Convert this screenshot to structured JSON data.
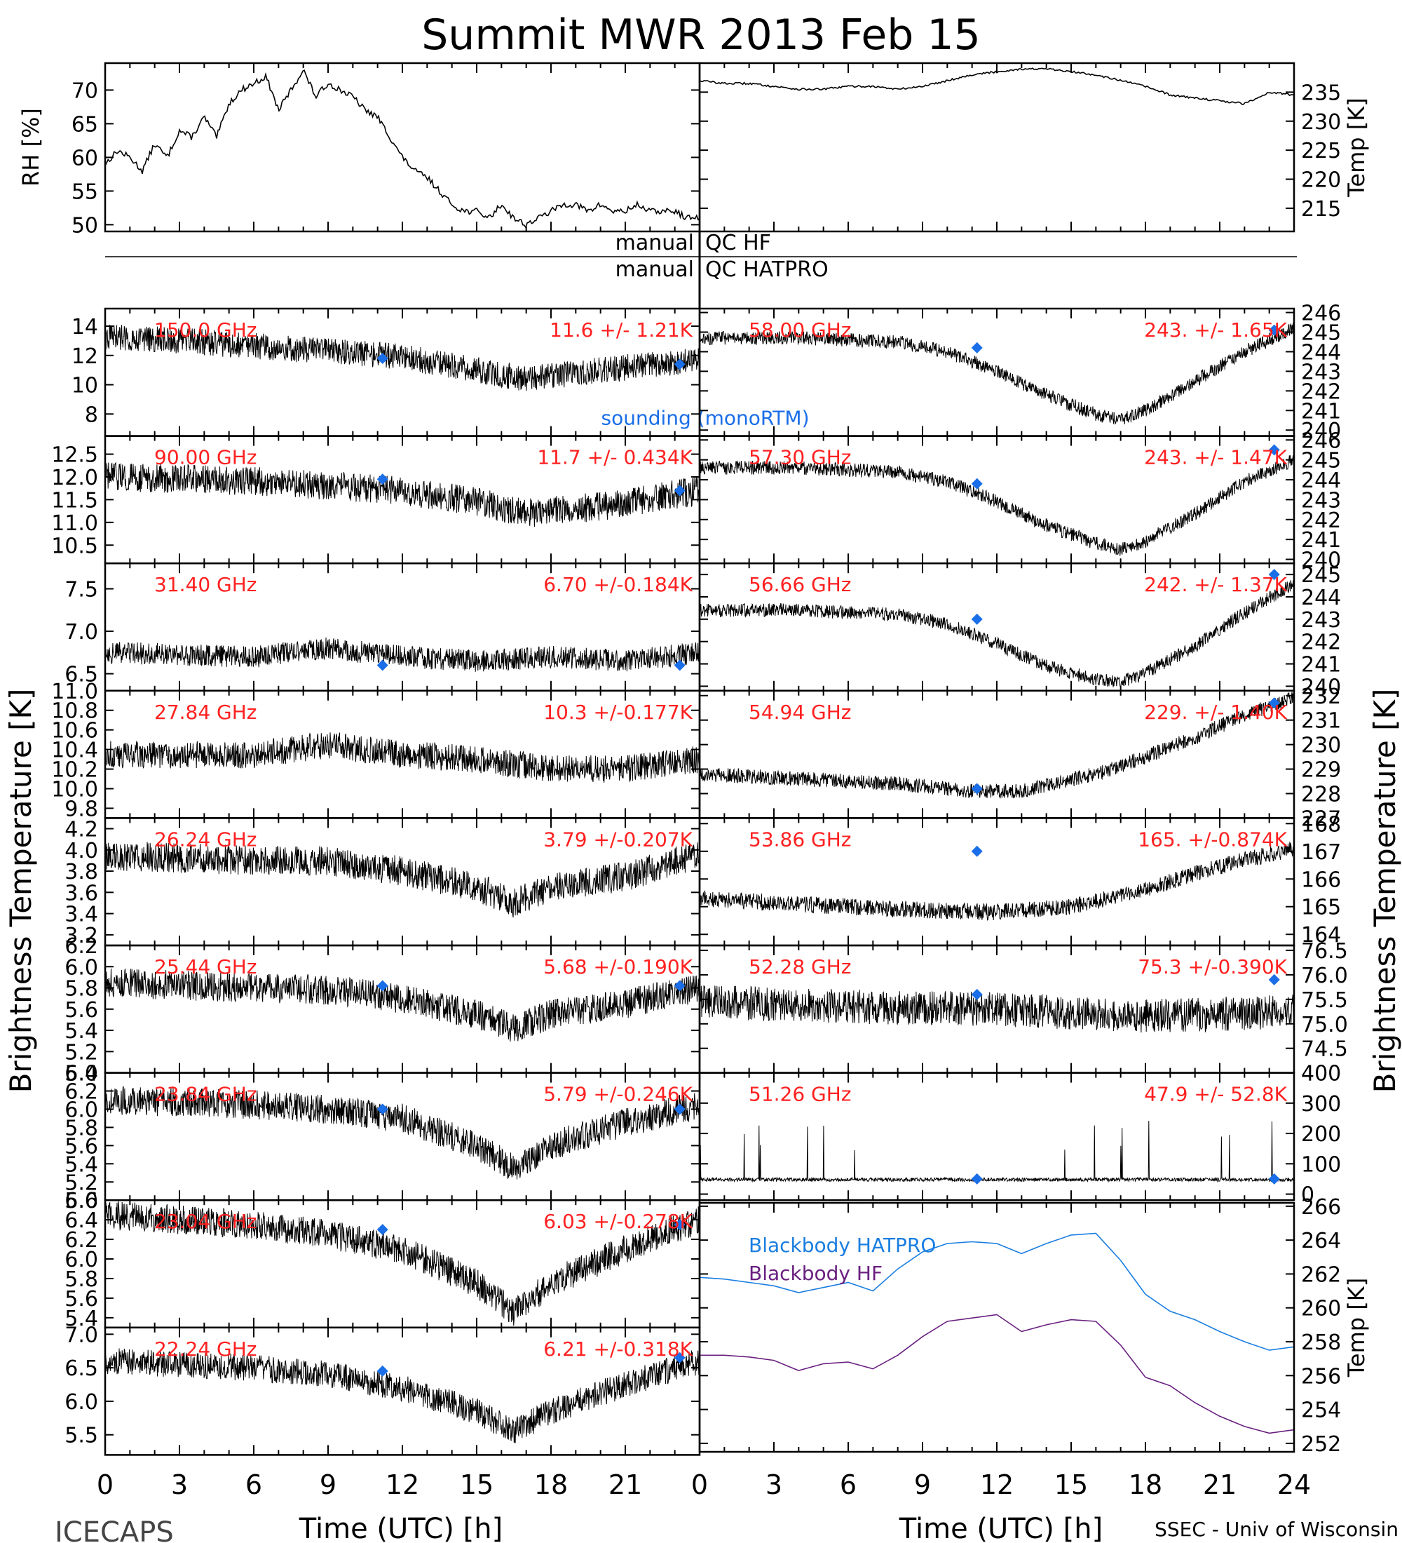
{
  "page": {
    "title": "Summit MWR 2013 Feb 15",
    "footer_left": "ICECAPS",
    "footer_right": "SSEC - Univ of Wisconsin",
    "left_ylabel": "Brightness Temperature [K]",
    "right_ylabel": "Brightness Temperature [K]",
    "xlabel": "Time (UTC) [h]",
    "qc_label_prefix": "manual",
    "qc_label_hf": "QC HF",
    "qc_label_hatpro": "QC HATPRO",
    "xticks": [
      "0",
      "3",
      "6",
      "9",
      "12",
      "15",
      "18",
      "21",
      "24"
    ],
    "colors": {
      "trace": "#000000",
      "label": "#ff2020",
      "sounding": "#1a6ee8",
      "bb_hatpro": "#1a7ee0",
      "bb_hf": "#6a2080"
    }
  },
  "chart_data": [
    {
      "id": "rh",
      "type": "line",
      "side": "left",
      "ylabel": "RH [%]",
      "ylim": [
        49,
        74
      ],
      "yticks": [
        "50",
        "55",
        "60",
        "65",
        "70"
      ],
      "series": [
        {
          "name": "RH",
          "x": [
            0,
            0.5,
            1,
            1.5,
            2,
            2.5,
            3,
            3.5,
            4,
            4.5,
            5,
            5.5,
            6,
            6.5,
            7,
            7.5,
            8,
            8.5,
            9,
            9.5,
            10,
            10.5,
            11,
            11.5,
            12,
            12.5,
            13,
            13.5,
            14,
            14.5,
            15,
            15.5,
            16,
            16.5,
            17,
            17.5,
            18,
            18.5,
            19,
            19.5,
            20,
            20.5,
            21,
            21.5,
            22,
            22.5,
            23,
            23.5,
            24
          ],
          "values": [
            59,
            61,
            60,
            58,
            62,
            60,
            64,
            63,
            66,
            63,
            68,
            70,
            71,
            72,
            67,
            70,
            73,
            69,
            71,
            70,
            69,
            67,
            66,
            63,
            60,
            58,
            57,
            55,
            53,
            52,
            52,
            51,
            53,
            51,
            50,
            51,
            52,
            53,
            53,
            52,
            53,
            52,
            52,
            53,
            52,
            52,
            52,
            51,
            51
          ]
        }
      ]
    },
    {
      "id": "temp",
      "type": "line",
      "side": "right",
      "ylabel": "Temp [K]",
      "ylim": [
        211,
        240
      ],
      "yticks": [
        "215",
        "220",
        "225",
        "230",
        "235"
      ],
      "series": [
        {
          "name": "Temp",
          "x": [
            0,
            1,
            2,
            3,
            4,
            5,
            6,
            7,
            8,
            9,
            10,
            11,
            12,
            13,
            14,
            15,
            16,
            17,
            18,
            19,
            20,
            21,
            22,
            23,
            24
          ],
          "values": [
            237,
            236.5,
            236.5,
            236,
            235.5,
            235.5,
            236,
            236,
            235.5,
            236,
            237,
            238,
            238.5,
            239,
            239,
            238.5,
            238,
            237,
            236,
            234.5,
            234,
            233.5,
            233,
            235,
            234.5
          ]
        }
      ]
    },
    {
      "id": "hf150",
      "type": "line",
      "side": "left",
      "freq": "150.0 GHz",
      "stats": "11.6 +/- 1.21K",
      "ylim": [
        6.5,
        15.2
      ],
      "yticks": [
        "8",
        "10",
        "12",
        "14"
      ],
      "noise": 0.9,
      "trend": {
        "x": [
          0,
          4,
          8,
          12,
          15,
          17,
          20,
          24
        ],
        "values": [
          13.3,
          12.9,
          12.4,
          11.9,
          11.0,
          10.4,
          11.0,
          11.7
        ]
      },
      "sounding": {
        "x": [
          11.2,
          23.2
        ],
        "values": [
          11.8,
          11.4
        ]
      },
      "note": "sounding (monoRTM)"
    },
    {
      "id": "hf90",
      "type": "line",
      "side": "left",
      "freq": "90.00 GHz",
      "stats": "11.7 +/- 0.434K",
      "ylim": [
        10.1,
        12.9
      ],
      "yticks": [
        "10.5",
        "11.0",
        "11.5",
        "12.0",
        "12.5"
      ],
      "noise": 0.32,
      "trend": {
        "x": [
          0,
          4,
          8,
          12,
          15,
          17,
          20,
          24
        ],
        "values": [
          12.0,
          11.95,
          11.85,
          11.7,
          11.45,
          11.2,
          11.35,
          11.7
        ]
      },
      "sounding": {
        "x": [
          11.2,
          23.2
        ],
        "values": [
          11.95,
          11.7
        ]
      }
    },
    {
      "id": "h3140",
      "type": "line",
      "side": "left",
      "freq": "31.40 GHz",
      "stats": "6.70 +/-0.184K",
      "ylim": [
        6.3,
        7.8
      ],
      "yticks": [
        "6.5",
        "7.0",
        "7.5"
      ],
      "noise": 0.13,
      "trend": {
        "x": [
          0,
          6,
          9,
          12,
          15,
          18,
          21,
          24
        ],
        "values": [
          6.75,
          6.7,
          6.8,
          6.7,
          6.65,
          6.7,
          6.65,
          6.75
        ]
      },
      "sounding": {
        "x": [
          11.2,
          23.2
        ],
        "values": [
          6.6,
          6.6
        ]
      }
    },
    {
      "id": "h2784",
      "type": "line",
      "side": "left",
      "freq": "27.84 GHz",
      "stats": "10.3 +/-0.177K",
      "ylim": [
        9.7,
        11.0
      ],
      "yticks": [
        "9.8",
        "10.0",
        "10.2",
        "10.4",
        "10.6",
        "10.8",
        "11.0"
      ],
      "noise": 0.14,
      "trend": {
        "x": [
          0,
          6,
          9,
          12,
          15,
          18,
          21,
          24
        ],
        "values": [
          10.35,
          10.35,
          10.45,
          10.35,
          10.3,
          10.2,
          10.2,
          10.3
        ]
      }
    },
    {
      "id": "h2624",
      "type": "line",
      "side": "left",
      "freq": "26.24 GHz",
      "stats": "3.79 +/-0.207K",
      "ylim": [
        3.1,
        4.3
      ],
      "yticks": [
        "3.2",
        "3.4",
        "3.6",
        "3.8",
        "4.0",
        "4.2"
      ],
      "noise": 0.14,
      "trend": {
        "x": [
          0,
          6,
          9,
          12,
          15,
          16.5,
          18,
          21,
          24
        ],
        "values": [
          3.95,
          3.9,
          3.9,
          3.8,
          3.65,
          3.5,
          3.65,
          3.75,
          3.95
        ]
      }
    },
    {
      "id": "h2544",
      "type": "line",
      "side": "left",
      "freq": "25.44 GHz",
      "stats": "5.68 +/-0.190K",
      "ylim": [
        5.0,
        6.2
      ],
      "yticks": [
        "5.0",
        "5.2",
        "5.4",
        "5.6",
        "5.8",
        "6.0",
        "6.2"
      ],
      "noise": 0.14,
      "trend": {
        "x": [
          0,
          6,
          9,
          12,
          15,
          16.5,
          18,
          21,
          24
        ],
        "values": [
          5.85,
          5.8,
          5.78,
          5.7,
          5.55,
          5.42,
          5.55,
          5.65,
          5.8
        ]
      },
      "sounding": {
        "x": [
          11.2,
          23.2
        ],
        "values": [
          5.82,
          5.82
        ]
      }
    },
    {
      "id": "h2384",
      "type": "line",
      "side": "left",
      "freq": "23.84 GHz",
      "stats": "5.79 +/-0.246K",
      "ylim": [
        5.0,
        6.4
      ],
      "yticks": [
        "5.0",
        "5.2",
        "5.4",
        "5.6",
        "5.8",
        "6.0",
        "6.2",
        "6.4"
      ],
      "noise": 0.16,
      "trend": {
        "x": [
          0,
          6,
          9,
          12,
          15,
          16.5,
          18,
          21,
          24
        ],
        "values": [
          6.1,
          6.05,
          6.0,
          5.9,
          5.6,
          5.35,
          5.6,
          5.85,
          6.05
        ]
      },
      "sounding": {
        "x": [
          11.2,
          23.2
        ],
        "values": [
          6.0,
          6.0
        ]
      }
    },
    {
      "id": "h2304",
      "type": "line",
      "side": "left",
      "freq": "23.04 GHz",
      "stats": "6.03 +/-0.278K",
      "ylim": [
        5.3,
        6.6
      ],
      "yticks": [
        "5.4",
        "5.6",
        "5.8",
        "6.0",
        "6.2",
        "6.4",
        "6.6"
      ],
      "noise": 0.15,
      "trend": {
        "x": [
          0,
          6,
          9,
          12,
          15,
          16.5,
          18,
          21,
          24
        ],
        "values": [
          6.45,
          6.35,
          6.25,
          6.1,
          5.75,
          5.45,
          5.75,
          6.1,
          6.4
        ]
      },
      "sounding": {
        "x": [
          11.2,
          23.2
        ],
        "values": [
          6.3,
          6.35
        ]
      }
    },
    {
      "id": "h2224",
      "type": "line",
      "side": "left",
      "freq": "22.24 GHz",
      "stats": "6.21 +/-0.318K",
      "ylim": [
        5.2,
        7.1
      ],
      "yticks": [
        "5.5",
        "6.0",
        "6.5",
        "7.0"
      ],
      "noise": 0.2,
      "trend": {
        "x": [
          0,
          6,
          9,
          12,
          15,
          16.5,
          18,
          21,
          24
        ],
        "values": [
          6.6,
          6.5,
          6.4,
          6.2,
          5.85,
          5.55,
          5.85,
          6.25,
          6.6
        ]
      },
      "sounding": {
        "x": [
          11.2,
          23.2
        ],
        "values": [
          6.45,
          6.65
        ]
      }
    },
    {
      "id": "h5830",
      "type": "line",
      "side": "right",
      "freq": "58.00 GHz",
      "stats": "243. +/- 1.65K",
      "ylim": [
        239.7,
        246.2
      ],
      "yticks": [
        "240",
        "241",
        "242",
        "243",
        "244",
        "245",
        "246"
      ],
      "noise": 0.35,
      "trend": {
        "x": [
          0,
          4,
          8,
          10,
          12,
          14,
          16,
          17,
          18,
          20,
          22,
          24
        ],
        "values": [
          244.7,
          244.7,
          244.5,
          244.0,
          243.0,
          241.8,
          240.8,
          240.5,
          241.0,
          242.5,
          244.0,
          245.2
        ]
      },
      "sounding": {
        "x": [
          11.2,
          23.2
        ],
        "values": [
          244.2,
          245.1
        ]
      }
    },
    {
      "id": "h5730",
      "type": "line",
      "side": "right",
      "freq": "57.30 GHz",
      "stats": "243. +/- 1.47K",
      "ylim": [
        239.8,
        246.2
      ],
      "yticks": [
        "240",
        "241",
        "242",
        "243",
        "244",
        "245",
        "246"
      ],
      "noise": 0.35,
      "trend": {
        "x": [
          0,
          4,
          8,
          10,
          12,
          14,
          16,
          17,
          18,
          20,
          22,
          24
        ],
        "values": [
          244.6,
          244.6,
          244.4,
          243.9,
          242.9,
          241.7,
          240.8,
          240.5,
          240.9,
          242.3,
          243.9,
          245.0
        ]
      },
      "sounding": {
        "x": [
          11.2,
          23.2
        ],
        "values": [
          243.8,
          245.5
        ]
      }
    },
    {
      "id": "h5666",
      "type": "line",
      "side": "right",
      "freq": "56.66 GHz",
      "stats": "242. +/- 1.37K",
      "ylim": [
        239.8,
        245.5
      ],
      "yticks": [
        "240",
        "241",
        "242",
        "243",
        "244",
        "245"
      ],
      "noise": 0.3,
      "trend": {
        "x": [
          0,
          4,
          8,
          10,
          12,
          14,
          16,
          17,
          18,
          20,
          22,
          24
        ],
        "values": [
          243.4,
          243.4,
          243.2,
          242.8,
          241.9,
          240.9,
          240.3,
          240.2,
          240.6,
          241.8,
          243.3,
          244.6
        ]
      },
      "sounding": {
        "x": [
          11.2,
          23.2
        ],
        "values": [
          243.0,
          245.0
        ]
      }
    },
    {
      "id": "h5494",
      "type": "line",
      "side": "right",
      "freq": "54.94 GHz",
      "stats": "229. +/- 1.40K",
      "ylim": [
        227.0,
        232.2
      ],
      "yticks": [
        "227",
        "228",
        "229",
        "230",
        "231",
        "232"
      ],
      "noise": 0.3,
      "trend": {
        "x": [
          0,
          4,
          8,
          11,
          13,
          16,
          18,
          20,
          22,
          24
        ],
        "values": [
          228.8,
          228.6,
          228.4,
          228.1,
          228.1,
          228.8,
          229.5,
          230.3,
          231.2,
          231.9
        ]
      },
      "sounding": {
        "x": [
          11.2,
          23.2
        ],
        "values": [
          228.2,
          231.7
        ]
      }
    },
    {
      "id": "h5386",
      "type": "line",
      "side": "right",
      "freq": "53.86 GHz",
      "stats": "165. +/-0.874K",
      "ylim": [
        163.6,
        168.2
      ],
      "yticks": [
        "164",
        "165",
        "166",
        "167",
        "168"
      ],
      "noise": 0.3,
      "trend": {
        "x": [
          0,
          4,
          8,
          12,
          15,
          18,
          20,
          22,
          24
        ],
        "values": [
          165.3,
          165.1,
          164.9,
          164.8,
          165.0,
          165.6,
          166.2,
          166.7,
          167.1
        ]
      },
      "sounding": {
        "x": [
          11.2
        ],
        "values": [
          167.0
        ]
      }
    },
    {
      "id": "h5228",
      "type": "line",
      "side": "right",
      "freq": "52.28 GHz",
      "stats": "75.3 +/-0.390K",
      "ylim": [
        74.0,
        76.6
      ],
      "yticks": [
        "74.5",
        "75.0",
        "75.5",
        "76.0",
        "76.5"
      ],
      "noise": 0.35,
      "trend": {
        "x": [
          0,
          6,
          12,
          18,
          24
        ],
        "values": [
          75.45,
          75.35,
          75.3,
          75.15,
          75.25
        ]
      },
      "sounding": {
        "x": [
          11.2,
          23.2
        ],
        "values": [
          75.6,
          75.9
        ]
      }
    },
    {
      "id": "h5126",
      "type": "line",
      "side": "right",
      "freq": "51.26 GHz",
      "stats": "47.9 +/- 52.8K",
      "ylim": [
        -20,
        400
      ],
      "yticks": [
        "0",
        "100",
        "200",
        "300",
        "400"
      ],
      "noise": 6,
      "trend": {
        "x": [
          0,
          24
        ],
        "values": [
          47.9,
          47.9
        ]
      },
      "sounding": {
        "x": [
          11.2,
          23.2
        ],
        "values": [
          50,
          50
        ]
      }
    },
    {
      "id": "blackbody",
      "type": "line",
      "side": "right",
      "ylabel": "Temp [K]",
      "ylim": [
        251.5,
        266.2
      ],
      "yticks": [
        "252",
        "254",
        "256",
        "258",
        "260",
        "262",
        "264",
        "266"
      ],
      "series": [
        {
          "name": "Blackbody HATPRO",
          "x": [
            0,
            1,
            2,
            3,
            4,
            5,
            6,
            7,
            8,
            9,
            10,
            11,
            12,
            13,
            14,
            15,
            16,
            17,
            18,
            19,
            20,
            21,
            22,
            23,
            24
          ],
          "values": [
            261.8,
            261.7,
            261.5,
            261.3,
            260.9,
            261.2,
            261.5,
            261.0,
            262.3,
            263.3,
            263.8,
            263.9,
            263.8,
            263.2,
            263.8,
            264.3,
            264.4,
            262.8,
            260.8,
            259.8,
            259.3,
            258.6,
            258.0,
            257.5,
            257.7
          ]
        },
        {
          "name": "Blackbody HF",
          "x": [
            0,
            1,
            2,
            3,
            4,
            5,
            6,
            7,
            8,
            9,
            10,
            11,
            12,
            13,
            14,
            15,
            16,
            17,
            18,
            19,
            20,
            21,
            22,
            23,
            24
          ],
          "values": [
            257.2,
            257.2,
            257.1,
            256.9,
            256.3,
            256.7,
            256.8,
            256.4,
            257.2,
            258.3,
            259.2,
            259.4,
            259.6,
            258.6,
            259.0,
            259.3,
            259.2,
            257.8,
            255.9,
            255.4,
            254.4,
            253.6,
            253.0,
            252.6,
            252.8
          ]
        }
      ]
    }
  ]
}
